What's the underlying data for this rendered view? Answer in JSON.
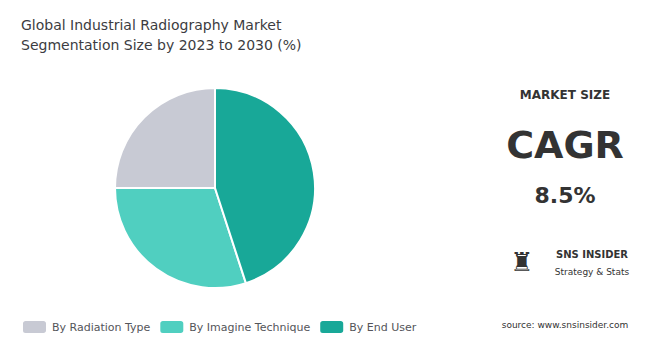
{
  "chart_data": {
    "type": "pie",
    "title": "Global Industrial Radiography Market\nSegmentation Size by 2023 to 2030 (%)",
    "categories": [
      "By Radiation Type",
      "By Imagine Technique",
      "By End User"
    ],
    "values": [
      25,
      30,
      45
    ],
    "colors": [
      "#c8cad4",
      "#50cfc0",
      "#18a898"
    ],
    "legend": "lower left",
    "annotations": [
      "MARKET SIZE",
      "CAGR",
      "8.5%",
      "♜",
      "SNS INSIDER",
      "Strategy & Stats",
      "source: www.snsinsider.com"
    ]
  }
}
